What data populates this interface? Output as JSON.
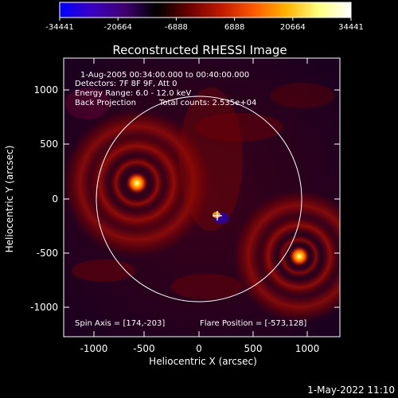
{
  "colorbar": {
    "ticks": [
      "-34441",
      "-20664",
      "-6888",
      "6888",
      "20664",
      "34441"
    ],
    "gradient": [
      "#0000ff",
      "#3a00c0",
      "#400070",
      "#000000",
      "#6a0000",
      "#c01a00",
      "#ff5a00",
      "#ffb400",
      "#ffff80",
      "#ffffff"
    ]
  },
  "title": "Reconstructed RHESSI Image",
  "info": {
    "line1": "1-Aug-2005 00:34:00.000 to 00:40:00.000",
    "line2": "Detectors: 7F 8F 9F, Att 0",
    "line3": "Energy Range: 6.0 - 12.0 keV",
    "line4a": "Back Projection",
    "line4b": "Total counts: 2.535e+04"
  },
  "footer_left": "Spin Axis = [174,-203]",
  "footer_right": "Flare Position = [-573,128]",
  "x_axis": {
    "label": "Heliocentric X (arcsec)",
    "ticks": [
      "-1000",
      "-500",
      "0",
      "500",
      "1000"
    ]
  },
  "y_axis": {
    "label": "Heliocentric Y (arcsec)",
    "ticks": [
      "1000",
      "500",
      "0",
      "-500",
      "-1000"
    ]
  },
  "timestamp": "1-May-2022 11:10"
}
